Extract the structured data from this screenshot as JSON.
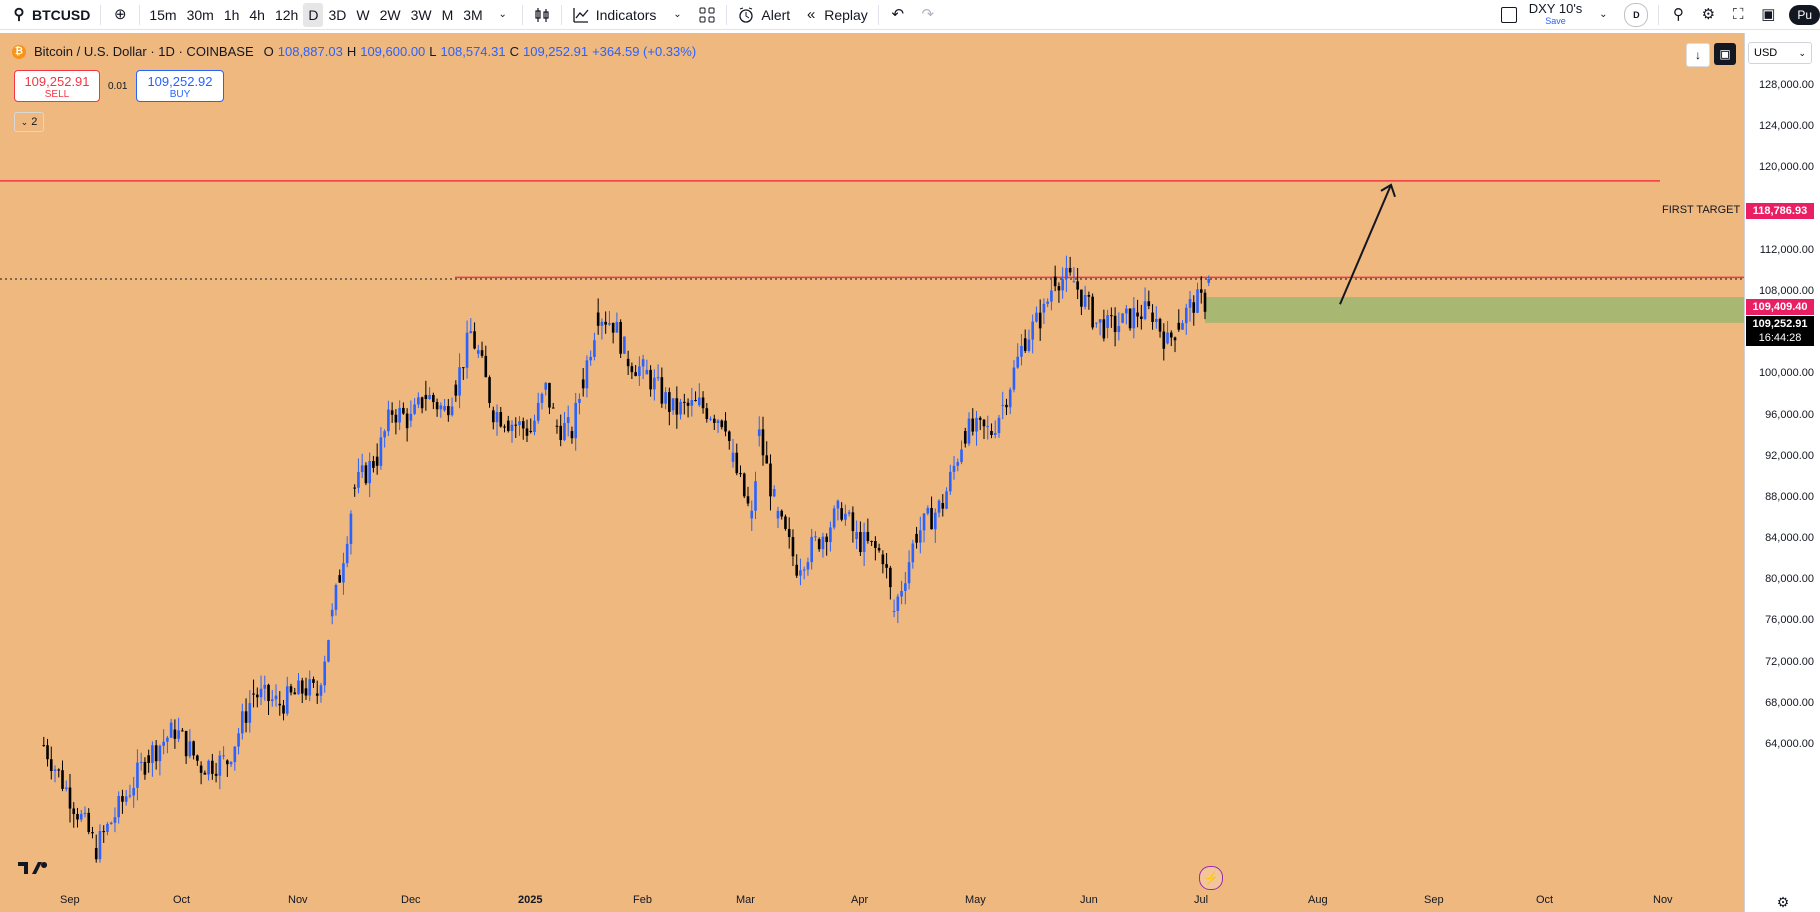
{
  "toolbar": {
    "symbol": "BTCUSD",
    "timeframes": [
      "15m",
      "30m",
      "1h",
      "4h",
      "12h",
      "D",
      "3D",
      "W",
      "2W",
      "3W",
      "M",
      "3M"
    ],
    "active_timeframe": "D",
    "indicators_label": "Indicators",
    "alert_label": "Alert",
    "replay_label": "Replay",
    "layout_name": "DXY 10's",
    "layout_save": "Save",
    "account_initial": "D",
    "publish_label": "Pu"
  },
  "legend": {
    "title": "Bitcoin / U.S. Dollar · 1D · COINBASE",
    "open_label": "O",
    "open": "108,887.03",
    "high_label": "H",
    "high": "109,600.00",
    "low_label": "L",
    "low": "108,574.31",
    "close_label": "C",
    "close": "109,252.91",
    "change": "+364.59 (+0.33%)"
  },
  "trade": {
    "sell_price": "109,252.91",
    "sell_label": "SELL",
    "spread": "0.01",
    "buy_price": "109,252.92",
    "buy_label": "BUY",
    "collapse_count": "2"
  },
  "annotations": {
    "target_label": "FIRST TARGET",
    "target_price": "118,786.93",
    "resistance_price": "109,409.40",
    "last_price": "109,252.91",
    "countdown": "16:44:28"
  },
  "price_scale": {
    "currency": "USD",
    "ticks": [
      "128,000.00",
      "124,000.00",
      "120,000.00",
      "116,000.00",
      "112,000.00",
      "108,000.00",
      "104,000.00",
      "100,000.00",
      "96,000.00",
      "92,000.00",
      "88,000.00",
      "84,000.00",
      "80,000.00",
      "76,000.00",
      "72,000.00",
      "68,000.00",
      "64,000.00"
    ]
  },
  "time_axis": {
    "ticks": [
      "Sep",
      "Oct",
      "Nov",
      "Dec",
      "2025",
      "Feb",
      "Mar",
      "Apr",
      "May",
      "Jun",
      "Jul",
      "Aug",
      "Sep",
      "Oct",
      "Nov"
    ]
  },
  "colors": {
    "chart_bg": "#eeb87f",
    "up_candle": "#2962ff",
    "down_candle": "#000000",
    "target_line": "#f23645",
    "zone": "#a8b771",
    "badge_red": "#e91e63",
    "badge_black": "#000000"
  },
  "chart_data": {
    "type": "candlestick",
    "title": "Bitcoin / U.S. Dollar · 1D · COINBASE",
    "y_range": [
      62000,
      130000
    ],
    "x_range": [
      "2024-08-20",
      "2025-11-30"
    ],
    "series": [
      {
        "date": "2024-08-25",
        "o": 64000,
        "c": 61000
      },
      {
        "date": "2024-09-08",
        "o": 54000,
        "c": 57000
      },
      {
        "date": "2024-09-22",
        "o": 63000,
        "c": 64500
      },
      {
        "date": "2024-09-29",
        "o": 65500,
        "c": 63500
      },
      {
        "date": "2024-10-06",
        "o": 62000,
        "c": 63000
      },
      {
        "date": "2024-10-13",
        "o": 62500,
        "c": 66000
      },
      {
        "date": "2024-10-20",
        "o": 69000,
        "c": 67500
      },
      {
        "date": "2024-10-27",
        "o": 68000,
        "c": 72000
      },
      {
        "date": "2024-11-03",
        "o": 69500,
        "c": 68000
      },
      {
        "date": "2024-11-06",
        "o": 69000,
        "c": 75500
      },
      {
        "date": "2024-11-10",
        "o": 76500,
        "c": 80500
      },
      {
        "date": "2024-11-12",
        "o": 80500,
        "c": 88000
      },
      {
        "date": "2024-11-16",
        "o": 89000,
        "c": 91000
      },
      {
        "date": "2024-11-22",
        "o": 92000,
        "c": 98500
      },
      {
        "date": "2024-11-26",
        "o": 96500,
        "c": 93000
      },
      {
        "date": "2024-12-01",
        "o": 95500,
        "c": 97000
      },
      {
        "date": "2024-12-05",
        "o": 98000,
        "c": 96500
      },
      {
        "date": "2024-12-10",
        "o": 96500,
        "c": 98500
      },
      {
        "date": "2024-12-13",
        "o": 99000,
        "c": 101500
      },
      {
        "date": "2024-12-17",
        "o": 104000,
        "c": 106200
      },
      {
        "date": "2024-12-19",
        "o": 102000,
        "c": 97500
      },
      {
        "date": "2024-12-23",
        "o": 96500,
        "c": 94500
      },
      {
        "date": "2024-12-27",
        "o": 95500,
        "c": 94000
      },
      {
        "date": "2025-01-02",
        "o": 94500,
        "c": 96500
      },
      {
        "date": "2025-01-06",
        "o": 98500,
        "c": 102000
      },
      {
        "date": "2025-01-09",
        "o": 95000,
        "c": 92500
      },
      {
        "date": "2025-01-13",
        "o": 94500,
        "c": 96500
      },
      {
        "date": "2025-01-16",
        "o": 99500,
        "c": 104000
      },
      {
        "date": "2025-01-20",
        "o": 106000,
        "c": 102500
      },
      {
        "date": "2025-01-24",
        "o": 105000,
        "c": 103500
      },
      {
        "date": "2025-01-28",
        "o": 101500,
        "c": 103000
      },
      {
        "date": "2025-02-02",
        "o": 100000,
        "c": 97500
      },
      {
        "date": "2025-02-09",
        "o": 96500,
        "c": 97000
      },
      {
        "date": "2025-02-16",
        "o": 97000,
        "c": 96000
      },
      {
        "date": "2025-02-23",
        "o": 95500,
        "c": 91500
      },
      {
        "date": "2025-02-25",
        "o": 91500,
        "c": 86000
      },
      {
        "date": "2025-03-02",
        "o": 86000,
        "c": 94000
      },
      {
        "date": "2025-03-04",
        "o": 94000,
        "c": 87500
      },
      {
        "date": "2025-03-09",
        "o": 86000,
        "c": 80500
      },
      {
        "date": "2025-03-14",
        "o": 81500,
        "c": 84000
      },
      {
        "date": "2025-03-20",
        "o": 84000,
        "c": 86000
      },
      {
        "date": "2025-03-26",
        "o": 87000,
        "c": 87500
      },
      {
        "date": "2025-03-30",
        "o": 84000,
        "c": 82000
      },
      {
        "date": "2025-04-06",
        "o": 82500,
        "c": 78000
      },
      {
        "date": "2025-04-09",
        "o": 77000,
        "c": 82500
      },
      {
        "date": "2025-04-15",
        "o": 84500,
        "c": 84000
      },
      {
        "date": "2025-04-22",
        "o": 87500,
        "c": 93500
      },
      {
        "date": "2025-04-28",
        "o": 94500,
        "c": 95000
      },
      {
        "date": "2025-05-05",
        "o": 94500,
        "c": 97000
      },
      {
        "date": "2025-05-08",
        "o": 97000,
        "c": 103000
      },
      {
        "date": "2025-05-14",
        "o": 103500,
        "c": 103500
      },
      {
        "date": "2025-05-19",
        "o": 106000,
        "c": 106000
      },
      {
        "date": "2025-05-22",
        "o": 109500,
        "c": 111500
      },
      {
        "date": "2025-05-27",
        "o": 109000,
        "c": 108000
      },
      {
        "date": "2025-06-02",
        "o": 105000,
        "c": 104500
      },
      {
        "date": "2025-06-05",
        "o": 104500,
        "c": 101500
      },
      {
        "date": "2025-06-09",
        "o": 105000,
        "c": 110000
      },
      {
        "date": "2025-06-13",
        "o": 106000,
        "c": 105500
      },
      {
        "date": "2025-06-17",
        "o": 106000,
        "c": 104500
      },
      {
        "date": "2025-06-21",
        "o": 103000,
        "c": 100500
      },
      {
        "date": "2025-06-24",
        "o": 105000,
        "c": 106500
      },
      {
        "date": "2025-06-28",
        "o": 107000,
        "c": 107500
      },
      {
        "date": "2025-07-02",
        "o": 107000,
        "c": 109250
      }
    ],
    "lines": [
      {
        "name": "FIRST TARGET",
        "y": 118786.93
      },
      {
        "name": "resistance",
        "y": 109409.4
      }
    ],
    "zone": {
      "y_from": 105000,
      "y_to": 107500,
      "x_from": "2025-07-01"
    }
  }
}
